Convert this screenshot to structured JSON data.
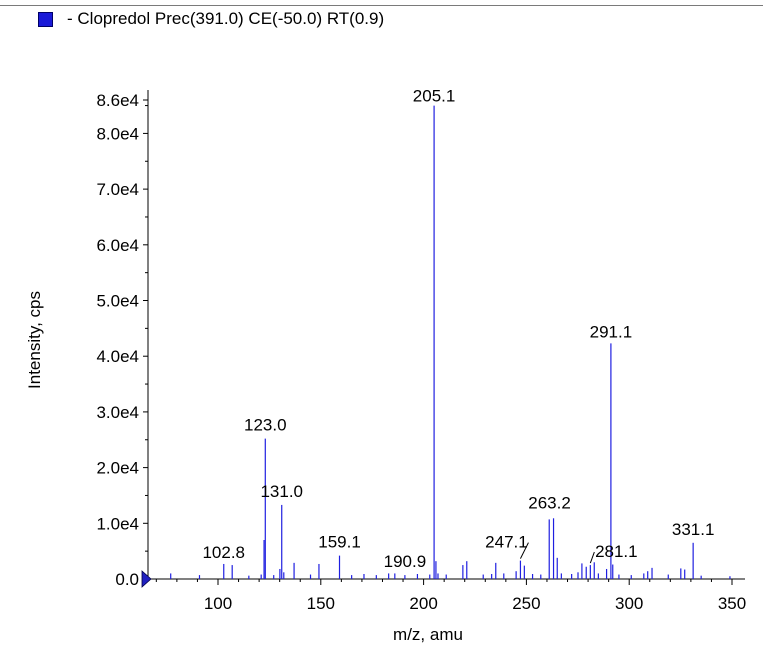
{
  "legend": {
    "label": "- Clopredol Prec(391.0) CE(-50.0) RT(0.9)",
    "color": "#1a1ad8"
  },
  "chart_data": {
    "type": "bar",
    "title": "",
    "xlabel": "m/z, amu",
    "ylabel": "Intensity, cps",
    "xlim": [
      64,
      355
    ],
    "ylim": [
      0,
      87000
    ],
    "x_ticks": [
      100,
      150,
      200,
      250,
      300,
      350
    ],
    "x_tick_labels": [
      "100",
      "150",
      "200",
      "250",
      "300",
      "350"
    ],
    "y_ticks": [
      0,
      10000,
      20000,
      30000,
      40000,
      50000,
      60000,
      70000,
      80000,
      86000
    ],
    "y_tick_labels": [
      "0.0",
      "1.0e4",
      "2.0e4",
      "3.0e4",
      "4.0e4",
      "5.0e4",
      "6.0e4",
      "7.0e4",
      "8.0e4",
      "8.6e4"
    ],
    "series_color": "#1f1fe0",
    "peaks": [
      {
        "mz": 77.0,
        "intensity": 1000
      },
      {
        "mz": 91.0,
        "intensity": 700
      },
      {
        "mz": 102.8,
        "intensity": 2700,
        "label": "102.8"
      },
      {
        "mz": 106.9,
        "intensity": 2500
      },
      {
        "mz": 115.0,
        "intensity": 600
      },
      {
        "mz": 121.0,
        "intensity": 800
      },
      {
        "mz": 122.4,
        "intensity": 7000
      },
      {
        "mz": 123.0,
        "intensity": 25200,
        "label": "123.0"
      },
      {
        "mz": 127.1,
        "intensity": 700
      },
      {
        "mz": 130.1,
        "intensity": 1800
      },
      {
        "mz": 131.0,
        "intensity": 13300,
        "label": "131.0"
      },
      {
        "mz": 132.0,
        "intensity": 1200
      },
      {
        "mz": 137.0,
        "intensity": 2900
      },
      {
        "mz": 145.0,
        "intensity": 800
      },
      {
        "mz": 149.1,
        "intensity": 2700
      },
      {
        "mz": 159.1,
        "intensity": 4200,
        "label": "159.1"
      },
      {
        "mz": 165.0,
        "intensity": 700
      },
      {
        "mz": 171.0,
        "intensity": 900
      },
      {
        "mz": 177.0,
        "intensity": 700
      },
      {
        "mz": 183.0,
        "intensity": 1000
      },
      {
        "mz": 186.0,
        "intensity": 1000
      },
      {
        "mz": 190.9,
        "intensity": 700,
        "label": "190.9"
      },
      {
        "mz": 197.0,
        "intensity": 900
      },
      {
        "mz": 203.0,
        "intensity": 800
      },
      {
        "mz": 205.1,
        "intensity": 85000,
        "label": "205.1"
      },
      {
        "mz": 206.0,
        "intensity": 3200
      },
      {
        "mz": 207.0,
        "intensity": 1000
      },
      {
        "mz": 211.0,
        "intensity": 800
      },
      {
        "mz": 219.1,
        "intensity": 2500
      },
      {
        "mz": 221.0,
        "intensity": 3200
      },
      {
        "mz": 229.0,
        "intensity": 800
      },
      {
        "mz": 233.1,
        "intensity": 900
      },
      {
        "mz": 235.1,
        "intensity": 2900
      },
      {
        "mz": 239.0,
        "intensity": 1000
      },
      {
        "mz": 245.0,
        "intensity": 1400
      },
      {
        "mz": 247.1,
        "intensity": 3300,
        "label": "247.1"
      },
      {
        "mz": 249.0,
        "intensity": 2400
      },
      {
        "mz": 253.0,
        "intensity": 900
      },
      {
        "mz": 257.0,
        "intensity": 800
      },
      {
        "mz": 261.1,
        "intensity": 10700
      },
      {
        "mz": 263.2,
        "intensity": 10900,
        "label": "263.2"
      },
      {
        "mz": 265.0,
        "intensity": 3800
      },
      {
        "mz": 267.0,
        "intensity": 1000
      },
      {
        "mz": 272.0,
        "intensity": 900
      },
      {
        "mz": 275.1,
        "intensity": 1200
      },
      {
        "mz": 277.0,
        "intensity": 2800
      },
      {
        "mz": 279.1,
        "intensity": 2200
      },
      {
        "mz": 281.1,
        "intensity": 2500,
        "label": "281.1"
      },
      {
        "mz": 283.0,
        "intensity": 3000
      },
      {
        "mz": 285.0,
        "intensity": 1000
      },
      {
        "mz": 289.0,
        "intensity": 1800
      },
      {
        "mz": 291.1,
        "intensity": 42300,
        "label": "291.1"
      },
      {
        "mz": 292.0,
        "intensity": 2600
      },
      {
        "mz": 295.0,
        "intensity": 800
      },
      {
        "mz": 301.0,
        "intensity": 700
      },
      {
        "mz": 307.1,
        "intensity": 1000
      },
      {
        "mz": 309.0,
        "intensity": 1400
      },
      {
        "mz": 311.1,
        "intensity": 2000
      },
      {
        "mz": 319.0,
        "intensity": 800
      },
      {
        "mz": 325.1,
        "intensity": 1900
      },
      {
        "mz": 327.0,
        "intensity": 1700
      },
      {
        "mz": 331.1,
        "intensity": 6500,
        "label": "331.1"
      },
      {
        "mz": 335.0,
        "intensity": 600
      },
      {
        "mz": 349.0,
        "intensity": 500
      }
    ]
  }
}
